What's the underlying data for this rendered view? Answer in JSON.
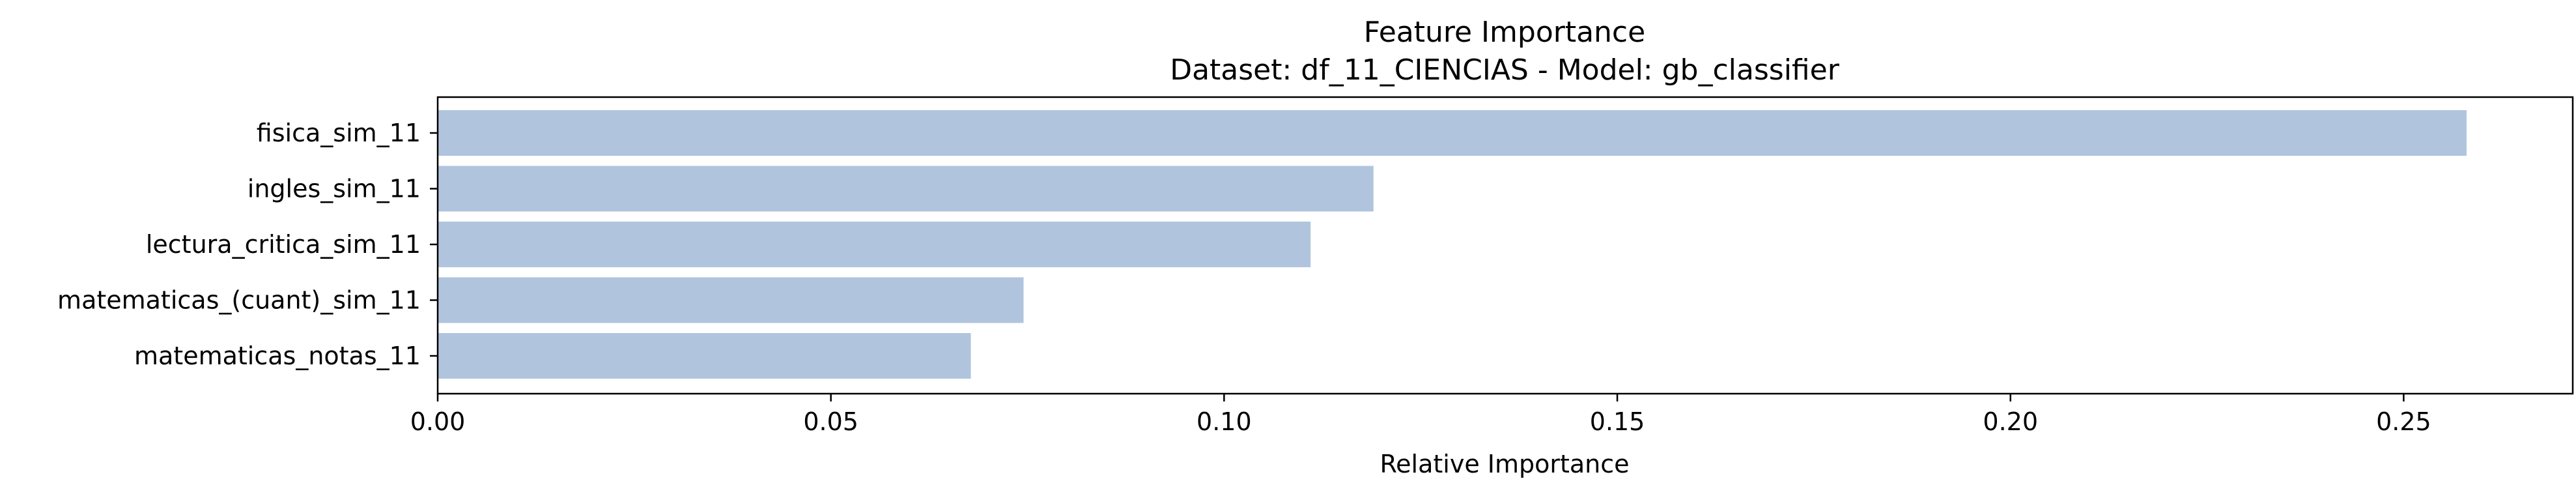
{
  "chart_data": {
    "type": "bar",
    "orientation": "horizontal",
    "title": "Feature Importance",
    "subtitle": "Dataset: df_11_CIENCIAS  -  Model: gb_classifier",
    "xlabel": "Relative Importance",
    "ylabel": "",
    "xlim": [
      0,
      0.2715
    ],
    "xticks": [
      0.0,
      0.05,
      0.1,
      0.15,
      0.2,
      0.25
    ],
    "xtick_labels": [
      "0.00",
      "0.05",
      "0.10",
      "0.15",
      "0.20",
      "0.25"
    ],
    "categories": [
      "fisica_sim_11",
      "ingles_sim_11",
      "lectura_critica_sim_11",
      "matematicas_(cuant)_sim_11",
      "matematicas_notas_11"
    ],
    "values": [
      0.258,
      0.119,
      0.111,
      0.0745,
      0.0678
    ],
    "bar_color": "#b0c4de",
    "grid": false,
    "legend": "none"
  }
}
